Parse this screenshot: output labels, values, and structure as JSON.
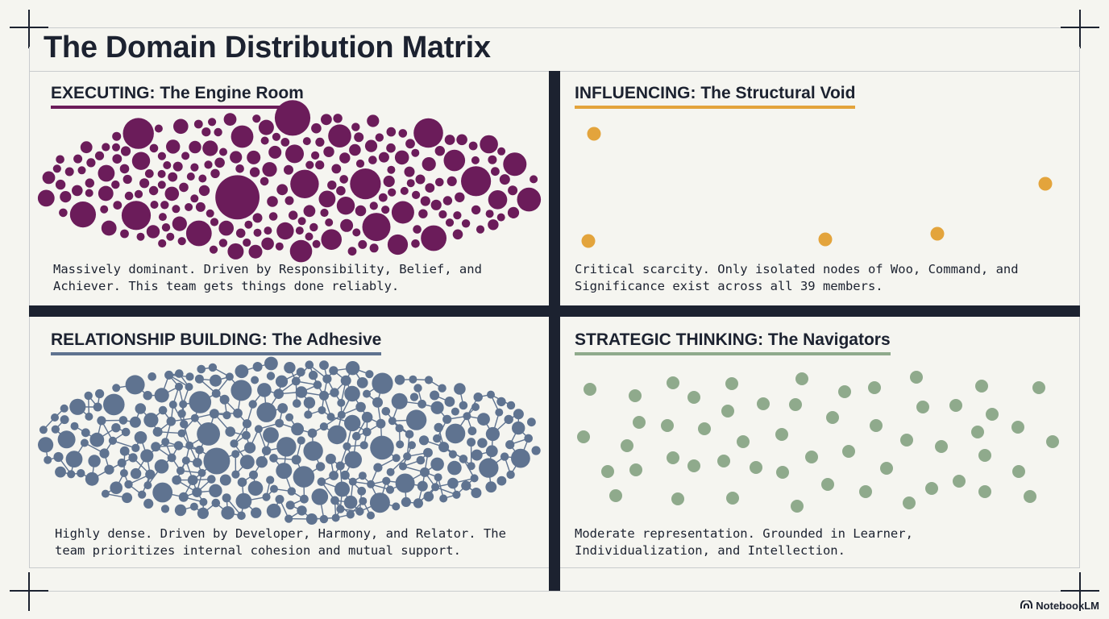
{
  "title": "The Domain Distribution Matrix",
  "brand": "NotebookLM",
  "colors": {
    "executing": "#6b1c5a",
    "influencing": "#e3a43c",
    "relationship": "#5f7390",
    "strategic": "#8faa8c",
    "divider": "#1c2230"
  },
  "quadrants": {
    "executing": {
      "title": "EXECUTING: The Engine Room",
      "description": "Massively dominant. Driven by Responsibility, Belief, and\nAchiever. This team gets things done reliably."
    },
    "influencing": {
      "title": "INFLUENCING: The Structural Void",
      "description": "Critical scarcity. Only isolated nodes of Woo, Command, and\nSignificance exist across all 39 members."
    },
    "relationship": {
      "title": "RELATIONSHIP BUILDING: The Adhesive",
      "description": "Highly dense. Driven by Developer, Harmony, and Relator. The\nteam prioritizes internal cohesion and mutual support."
    },
    "strategic": {
      "title": "STRATEGIC THINKING: The Navigators",
      "description": "Moderate representation. Grounded in Learner,\nIndividualization, and Intellection."
    }
  }
}
